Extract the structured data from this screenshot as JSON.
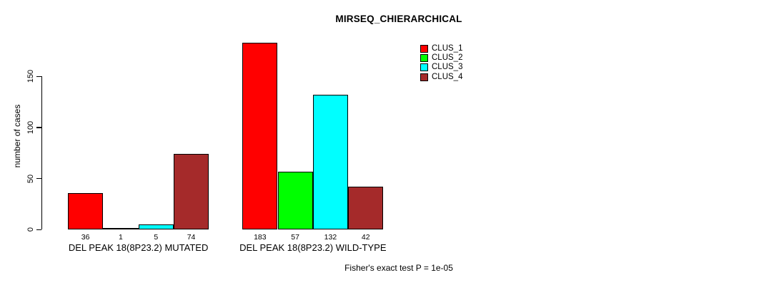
{
  "chart_data": {
    "type": "bar",
    "title": "MIRSEQ_CHIERARCHICAL",
    "ylabel": "number of cases",
    "xlabel": "",
    "yticks": [
      0,
      50,
      100,
      150
    ],
    "ylim": [
      0,
      190
    ],
    "grid": false,
    "legend_position": "top-right",
    "categories": [
      "DEL PEAK 18(8P23.2) MUTATED",
      "DEL PEAK 18(8P23.2) WILD-TYPE"
    ],
    "series": [
      {
        "name": "CLUS_1",
        "color": "#ff0000",
        "values": [
          36,
          183
        ]
      },
      {
        "name": "CLUS_2",
        "color": "#00ff00",
        "values": [
          1,
          57
        ]
      },
      {
        "name": "CLUS_3",
        "color": "#00ffff",
        "values": [
          5,
          132
        ]
      },
      {
        "name": "CLUS_4",
        "color": "#a52a2a",
        "values": [
          74,
          42
        ]
      }
    ],
    "groups": [
      {
        "label": "DEL PEAK 18(8P23.2) MUTATED",
        "values": [
          36,
          1,
          5,
          74
        ]
      },
      {
        "label": "DEL PEAK 18(8P23.2) WILD-TYPE",
        "values": [
          183,
          57,
          132,
          42
        ]
      }
    ],
    "footnote": "Fisher's exact test P = 1e-05"
  }
}
